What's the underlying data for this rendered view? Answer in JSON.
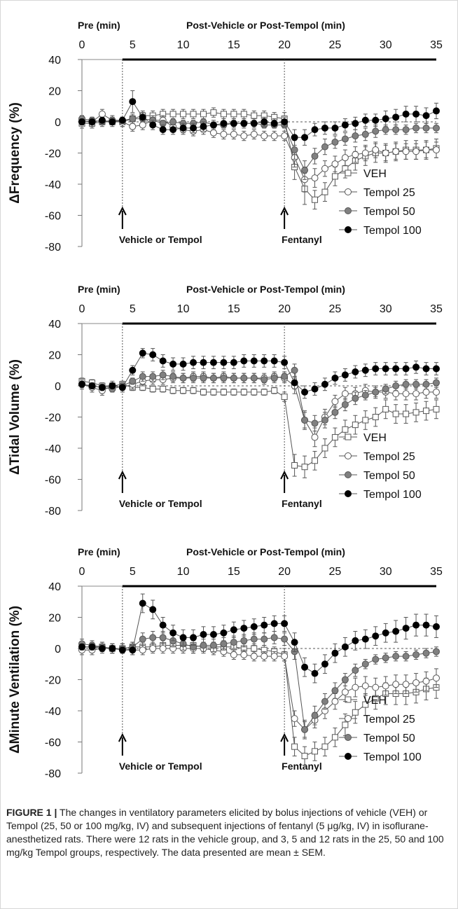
{
  "chart_data": [
    {
      "type": "line",
      "top_axis": {
        "pre_label": "Pre (min)",
        "post_label": "Post-Vehicle or Post-Tempol (min)",
        "ticks": [
          0,
          5,
          10,
          15,
          20,
          25,
          30,
          35
        ]
      },
      "ylabel": "ΔFrequency (%)",
      "yticks": [
        40,
        20,
        0,
        -20,
        -40,
        -60,
        -80
      ],
      "xlim": [
        0,
        35
      ],
      "ylim": [
        -80,
        40
      ],
      "annotations": [
        {
          "text": "Vehicle or Tempol",
          "x": 4
        },
        {
          "text": "Fentanyl",
          "x": 20
        }
      ],
      "legend": "bottom-right",
      "x": [
        0,
        1,
        2,
        3,
        4,
        5,
        6,
        7,
        8,
        9,
        10,
        11,
        12,
        13,
        14,
        15,
        16,
        17,
        18,
        19,
        20,
        21,
        22,
        23,
        24,
        25,
        26,
        27,
        28,
        29,
        30,
        31,
        32,
        33,
        34,
        35
      ],
      "series": [
        {
          "name": "VEH",
          "marker": "open-square",
          "values": [
            -1,
            -1,
            0,
            0,
            0,
            2,
            4,
            4,
            5,
            5,
            5,
            5,
            5,
            6,
            5,
            5,
            5,
            4,
            4,
            3,
            2,
            -29,
            -43,
            -50,
            -45,
            -35,
            -30,
            -25,
            -22,
            -20,
            -20,
            -19,
            -18,
            -18,
            -18,
            -17
          ],
          "error": [
            3,
            3,
            3,
            3,
            3,
            3,
            3,
            3,
            3,
            3,
            3,
            3,
            3,
            3,
            3,
            3,
            3,
            3,
            3,
            3,
            4,
            8,
            10,
            6,
            6,
            6,
            6,
            6,
            6,
            6,
            6,
            6,
            6,
            6,
            6,
            6
          ]
        },
        {
          "name": "Tempol 25",
          "marker": "open-circle",
          "values": [
            1,
            0,
            5,
            1,
            0,
            -3,
            -2,
            1,
            1,
            -3,
            -5,
            -6,
            -5,
            -7,
            -8,
            -8,
            -9,
            -8,
            -9,
            -9,
            -9,
            -23,
            -37,
            -36,
            -30,
            -27,
            -23,
            -21,
            -20,
            -18,
            -20,
            -19,
            -19,
            -19,
            -18,
            -18
          ],
          "error": [
            3,
            3,
            3,
            3,
            3,
            3,
            3,
            3,
            3,
            3,
            3,
            3,
            3,
            3,
            3,
            3,
            3,
            3,
            3,
            3,
            3,
            6,
            8,
            6,
            5,
            5,
            5,
            5,
            5,
            5,
            5,
            5,
            5,
            5,
            5,
            5
          ]
        },
        {
          "name": "Tempol 50",
          "marker": "filled-grey-circle",
          "values": [
            2,
            1,
            0,
            1,
            1,
            2,
            2,
            1,
            -1,
            0,
            -1,
            -1,
            0,
            -2,
            -2,
            -1,
            -1,
            -1,
            -2,
            -2,
            -2,
            -18,
            -31,
            -22,
            -16,
            -13,
            -11,
            -9,
            -8,
            -6,
            -5,
            -5,
            -5,
            -4,
            -4,
            -4
          ],
          "error": [
            2,
            2,
            2,
            2,
            2,
            2,
            2,
            2,
            2,
            2,
            2,
            2,
            2,
            2,
            2,
            2,
            2,
            2,
            2,
            2,
            2,
            6,
            6,
            5,
            5,
            4,
            4,
            4,
            4,
            4,
            3,
            3,
            3,
            3,
            3,
            3
          ]
        },
        {
          "name": "Tempol 100",
          "marker": "filled-black-circle",
          "values": [
            0,
            0,
            1,
            0,
            1,
            13,
            3,
            -2,
            -5,
            -5,
            -4,
            -4,
            -3,
            -2,
            -1,
            -1,
            -1,
            -1,
            0,
            -1,
            0,
            -10,
            -10,
            -5,
            -4,
            -4,
            -2,
            -1,
            1,
            1,
            2,
            3,
            5,
            5,
            4,
            7
          ],
          "error": [
            2,
            2,
            2,
            2,
            2,
            7,
            3,
            3,
            3,
            3,
            3,
            3,
            3,
            3,
            3,
            3,
            3,
            3,
            3,
            3,
            3,
            5,
            5,
            4,
            4,
            4,
            4,
            4,
            4,
            4,
            5,
            5,
            5,
            5,
            5,
            5
          ]
        }
      ]
    },
    {
      "type": "line",
      "top_axis": {
        "pre_label": "Pre (min)",
        "post_label": "Post-Vehicle or Post-Tempol (min)",
        "ticks": [
          0,
          5,
          10,
          15,
          20,
          25,
          30,
          35
        ]
      },
      "ylabel": "ΔTidal Volume (%)",
      "yticks": [
        40,
        20,
        0,
        -20,
        -40,
        -60,
        -80
      ],
      "xlim": [
        0,
        35
      ],
      "ylim": [
        -80,
        40
      ],
      "annotations": [
        {
          "text": "Vehicle or Tempol",
          "x": 4
        },
        {
          "text": "Fentanyl",
          "x": 20
        }
      ],
      "legend": "bottom-right",
      "x": [
        0,
        1,
        2,
        3,
        4,
        5,
        6,
        7,
        8,
        9,
        10,
        11,
        12,
        13,
        14,
        15,
        16,
        17,
        18,
        19,
        20,
        21,
        22,
        23,
        24,
        25,
        26,
        27,
        28,
        29,
        30,
        31,
        32,
        33,
        34,
        35
      ],
      "series": [
        {
          "name": "VEH",
          "marker": "open-square",
          "values": [
            3,
            2,
            0,
            0,
            1,
            -1,
            -1,
            -2,
            -2,
            -3,
            -3,
            -3,
            -4,
            -4,
            -4,
            -4,
            -4,
            -4,
            -4,
            -3,
            -7,
            -51,
            -52,
            -48,
            -40,
            -33,
            -28,
            -25,
            -22,
            -20,
            -15,
            -18,
            -18,
            -17,
            -16,
            -15
          ],
          "error": [
            2,
            2,
            2,
            2,
            2,
            2,
            2,
            2,
            2,
            2,
            2,
            2,
            2,
            2,
            2,
            2,
            2,
            2,
            2,
            2,
            3,
            7,
            7,
            6,
            6,
            6,
            6,
            6,
            6,
            6,
            6,
            6,
            6,
            6,
            6,
            6
          ]
        },
        {
          "name": "Tempol 25",
          "marker": "open-circle",
          "values": [
            1,
            -1,
            -3,
            0,
            -1,
            1,
            3,
            4,
            4,
            5,
            5,
            6,
            6,
            5,
            6,
            5,
            5,
            5,
            5,
            6,
            5,
            0,
            -22,
            -33,
            -20,
            -10,
            -5,
            -5,
            -3,
            -4,
            -4,
            -5,
            -5,
            -5,
            -4,
            -4
          ],
          "error": [
            3,
            3,
            3,
            3,
            3,
            3,
            3,
            3,
            3,
            3,
            3,
            3,
            3,
            3,
            3,
            3,
            3,
            3,
            3,
            3,
            3,
            5,
            6,
            6,
            5,
            4,
            4,
            4,
            4,
            4,
            4,
            4,
            4,
            4,
            4,
            4
          ]
        },
        {
          "name": "Tempol 50",
          "marker": "filled-grey-circle",
          "values": [
            1,
            0,
            -1,
            -2,
            0,
            3,
            6,
            6,
            7,
            6,
            5,
            5,
            5,
            5,
            5,
            5,
            5,
            5,
            4,
            5,
            6,
            10,
            -22,
            -24,
            -22,
            -17,
            -12,
            -8,
            -6,
            -4,
            -2,
            0,
            1,
            1,
            1,
            2
          ],
          "error": [
            2,
            2,
            2,
            2,
            2,
            2,
            3,
            3,
            3,
            3,
            3,
            3,
            3,
            3,
            3,
            3,
            3,
            3,
            3,
            3,
            3,
            4,
            5,
            5,
            5,
            4,
            4,
            4,
            3,
            3,
            3,
            3,
            3,
            3,
            3,
            3
          ]
        },
        {
          "name": "Tempol 100",
          "marker": "filled-black-circle",
          "values": [
            1,
            0,
            -1,
            0,
            -1,
            10,
            21,
            20,
            16,
            14,
            14,
            15,
            15,
            15,
            15,
            15,
            16,
            16,
            16,
            16,
            15,
            2,
            -4,
            -2,
            1,
            5,
            7,
            9,
            10,
            11,
            11,
            11,
            11,
            12,
            11,
            11
          ],
          "error": [
            2,
            2,
            2,
            2,
            2,
            3,
            3,
            4,
            4,
            4,
            4,
            4,
            4,
            4,
            4,
            4,
            4,
            4,
            4,
            4,
            4,
            4,
            4,
            4,
            4,
            4,
            4,
            4,
            4,
            4,
            4,
            4,
            4,
            4,
            4,
            4
          ]
        }
      ]
    },
    {
      "type": "line",
      "top_axis": {
        "pre_label": "Pre (min)",
        "post_label": "Post-Vehicle or Post-Tempol (min)",
        "ticks": [
          0,
          5,
          10,
          15,
          20,
          25,
          30,
          35
        ]
      },
      "ylabel": "ΔMinute Ventilation (%)",
      "yticks": [
        40,
        20,
        0,
        -20,
        -40,
        -60,
        -80
      ],
      "xlim": [
        0,
        35
      ],
      "ylim": [
        -80,
        40
      ],
      "annotations": [
        {
          "text": "Vehicle or Tempol",
          "x": 4
        },
        {
          "text": "Fentanyl",
          "x": 20
        }
      ],
      "legend": "bottom-right",
      "x": [
        0,
        1,
        2,
        3,
        4,
        5,
        6,
        7,
        8,
        9,
        10,
        11,
        12,
        13,
        14,
        15,
        16,
        17,
        18,
        19,
        20,
        21,
        22,
        23,
        24,
        25,
        26,
        27,
        28,
        29,
        30,
        31,
        32,
        33,
        34,
        35
      ],
      "series": [
        {
          "name": "VEH",
          "marker": "open-square",
          "values": [
            1,
            1,
            1,
            0,
            0,
            1,
            1,
            1,
            2,
            2,
            2,
            2,
            1,
            1,
            1,
            1,
            0,
            0,
            -1,
            -2,
            -4,
            -63,
            -69,
            -66,
            -63,
            -57,
            -49,
            -41,
            -36,
            -32,
            -29,
            -29,
            -29,
            -28,
            -26,
            -25
          ],
          "error": [
            3,
            3,
            3,
            3,
            3,
            3,
            3,
            3,
            3,
            3,
            3,
            3,
            3,
            3,
            3,
            3,
            3,
            3,
            3,
            3,
            4,
            6,
            6,
            6,
            6,
            6,
            7,
            7,
            7,
            7,
            7,
            7,
            7,
            7,
            7,
            7
          ]
        },
        {
          "name": "Tempol 25",
          "marker": "open-circle",
          "values": [
            -1,
            -1,
            0,
            0,
            0,
            -1,
            -1,
            0,
            0,
            0,
            0,
            0,
            0,
            -1,
            -2,
            -4,
            -4,
            -5,
            -5,
            -5,
            -5,
            -45,
            -52,
            -46,
            -40,
            -34,
            -28,
            -25,
            -24,
            -25,
            -24,
            -23,
            -23,
            -22,
            -21,
            -19
          ],
          "error": [
            3,
            3,
            3,
            3,
            3,
            3,
            3,
            3,
            3,
            3,
            3,
            3,
            3,
            3,
            3,
            3,
            3,
            3,
            3,
            3,
            3,
            5,
            5,
            5,
            5,
            5,
            6,
            6,
            6,
            6,
            6,
            6,
            6,
            6,
            6,
            6
          ]
        },
        {
          "name": "Tempol 50",
          "marker": "filled-grey-circle",
          "values": [
            3,
            2,
            1,
            0,
            0,
            1,
            6,
            7,
            7,
            5,
            3,
            1,
            2,
            2,
            3,
            4,
            5,
            6,
            6,
            7,
            6,
            -2,
            -52,
            -43,
            -34,
            -27,
            -20,
            -14,
            -10,
            -7,
            -6,
            -5,
            -5,
            -4,
            -3,
            -2
          ],
          "error": [
            3,
            3,
            3,
            3,
            3,
            3,
            4,
            4,
            4,
            4,
            4,
            4,
            4,
            4,
            4,
            4,
            4,
            4,
            4,
            4,
            4,
            5,
            6,
            6,
            5,
            5,
            4,
            4,
            3,
            3,
            3,
            3,
            3,
            3,
            3,
            3
          ]
        },
        {
          "name": "Tempol 100",
          "marker": "filled-black-circle",
          "values": [
            1,
            1,
            0,
            0,
            -1,
            -1,
            29,
            25,
            15,
            10,
            7,
            7,
            9,
            9,
            10,
            12,
            13,
            14,
            15,
            16,
            16,
            4,
            -12,
            -16,
            -10,
            -3,
            1,
            5,
            6,
            8,
            10,
            11,
            13,
            15,
            15,
            14
          ],
          "error": [
            2,
            2,
            2,
            2,
            2,
            3,
            6,
            6,
            5,
            5,
            5,
            5,
            5,
            5,
            5,
            5,
            5,
            5,
            5,
            5,
            5,
            6,
            6,
            6,
            6,
            6,
            6,
            6,
            6,
            6,
            6,
            7,
            7,
            7,
            7,
            7
          ]
        }
      ]
    }
  ],
  "caption": {
    "label": "FIGURE 1 |",
    "text": " The changes in ventilatory parameters elicited by bolus injections of vehicle (VEH) or Tempol (25, 50 or 100 mg/kg, IV) and subsequent injections of fentanyl (5 μg/kg, IV) in isoflurane-anesthetized rats. There were 12 rats in the vehicle group, and 3, 5 and 12 rats in the 25, 50 and 100 mg/kg Tempol groups, respectively. The data presented are mean ± SEM."
  }
}
